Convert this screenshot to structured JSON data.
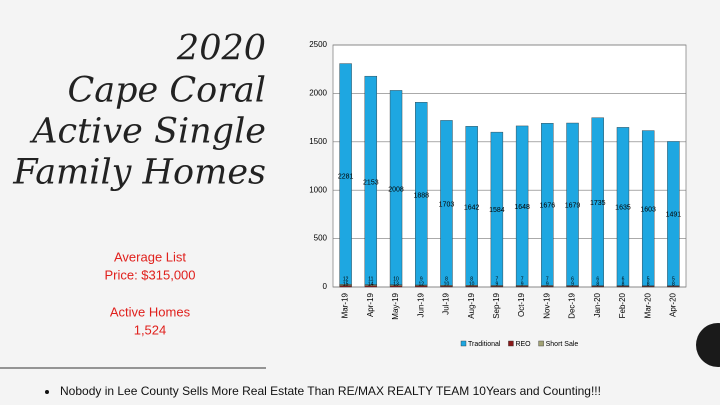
{
  "slide": {
    "title_lines": [
      "2020",
      "Cape Coral",
      "Active Single",
      "Family Homes"
    ],
    "stats": [
      "Average List",
      "Price: $315,000",
      "Active Homes",
      "1,524"
    ],
    "footer": "Nobody in Lee County Sells More Real Estate Than RE/MAX REALTY TEAM  10Years and Counting!!!"
  },
  "chart_data": {
    "type": "stacked_bar",
    "categories": [
      "Mar-19",
      "Apr-19",
      "May-19",
      "Jun-19",
      "Jul-19",
      "Aug-19",
      "Sep-19",
      "Oct-19",
      "Nov-19",
      "Dec-19",
      "Jan-20",
      "Feb-20",
      "Mar-20",
      "Apr-20"
    ],
    "series": [
      {
        "name": "Traditional",
        "color": "#1ea7e1",
        "values": [
          2281,
          2153,
          2008,
          1888,
          1703,
          1642,
          1584,
          1648,
          1676,
          1679,
          1735,
          1635,
          1603,
          1491
        ]
      },
      {
        "name": "REO",
        "color": "#8b1a1a",
        "values": [
          15,
          14,
          13,
          12,
          10,
          10,
          9,
          9,
          9,
          9,
          8,
          8,
          8,
          8
        ]
      },
      {
        "name": "Short Sale",
        "color": "#a3a375",
        "values": [
          12,
          11,
          10,
          9,
          8,
          8,
          7,
          7,
          7,
          6,
          6,
          6,
          5,
          5
        ]
      }
    ],
    "ylim": [
      0,
      2500
    ],
    "yticks": [
      0,
      500,
      1000,
      1500,
      2000,
      2500
    ],
    "grid": true
  }
}
